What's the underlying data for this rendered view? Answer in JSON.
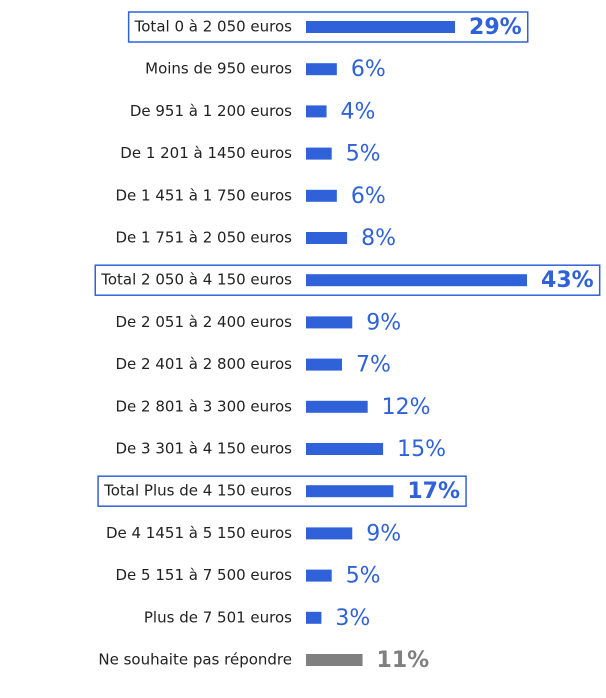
{
  "chart_data": {
    "type": "bar",
    "orientation": "horizontal",
    "categories": [
      "Total 0 à 2 050 euros",
      "Moins de 950 euros",
      "De 951 à 1 200 euros",
      "De 1 201 à 1450 euros",
      "De 1 451 à 1 750 euros",
      "De 1 751 à 2 050 euros",
      "Total 2 050 à 4 150 euros",
      "De 2 051 à 2 400 euros",
      "De 2 401 à 2 800 euros",
      "De 2 801 à 3 300 euros",
      "De 3 301 à 4 150 euros",
      "Total Plus de 4 150 euros",
      "De 4 1451 à 5 150 euros",
      "De 5 151 à 7 500 euros",
      "Plus de 7 501 euros",
      "Ne souhaite pas répondre"
    ],
    "values": [
      29,
      6,
      4,
      5,
      6,
      8,
      43,
      9,
      7,
      12,
      15,
      17,
      9,
      5,
      3,
      11
    ],
    "value_labels": [
      "29%",
      "6%",
      "4%",
      "5%",
      "6%",
      "8%",
      "43%",
      "9%",
      "7%",
      "12%",
      "15%",
      "17%",
      "9%",
      "5%",
      "3%",
      "11%"
    ],
    "colors": [
      "#2f62d8",
      "#2f62d8",
      "#2f62d8",
      "#2f62d8",
      "#2f62d8",
      "#2f62d8",
      "#2f62d8",
      "#2f62d8",
      "#2f62d8",
      "#2f62d8",
      "#2f62d8",
      "#2f62d8",
      "#2f62d8",
      "#2f62d8",
      "#2f62d8",
      "#808080"
    ],
    "boxed": [
      true,
      false,
      false,
      false,
      false,
      false,
      true,
      false,
      false,
      false,
      false,
      true,
      false,
      false,
      false,
      false
    ],
    "bold_values": [
      true,
      false,
      false,
      false,
      false,
      false,
      true,
      false,
      false,
      false,
      false,
      true,
      false,
      false,
      false,
      true
    ]
  }
}
